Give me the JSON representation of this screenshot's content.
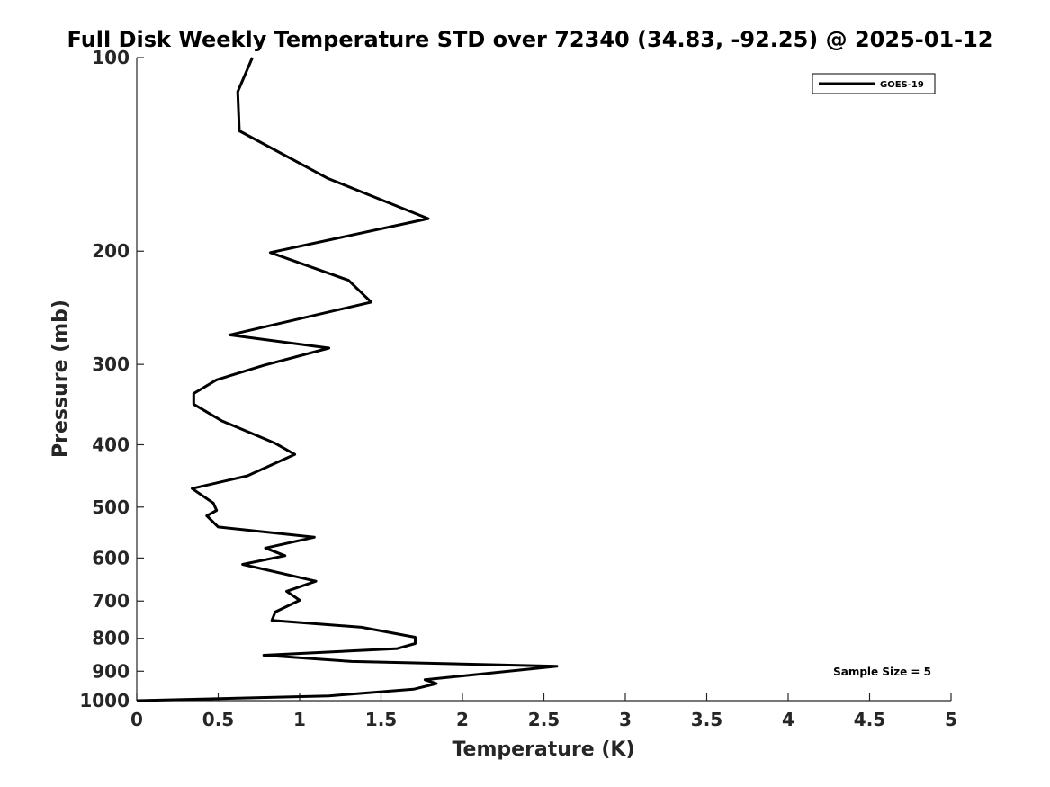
{
  "chart_data": {
    "type": "line",
    "title": "Full Disk Weekly Temperature STD over 72340 (34.83, -92.25) @ 2025-01-12",
    "xlabel": "Temperature (K)",
    "ylabel": "Pressure (mb)",
    "xlim": [
      0,
      5
    ],
    "ylim": [
      100,
      1000
    ],
    "y_scale": "log",
    "y_reversed": true,
    "grid": false,
    "legend_position": "top-right",
    "x_ticks": [
      "0",
      "0.5",
      "1",
      "1.5",
      "2",
      "2.5",
      "3",
      "3.5",
      "4",
      "4.5",
      "5"
    ],
    "y_ticks": [
      "100",
      "200",
      "300",
      "400",
      "500",
      "600",
      "700",
      "800",
      "900",
      "1000"
    ],
    "series": [
      {
        "name": "GOES-19",
        "color": "#000000",
        "points": [
          [
            0.71,
            100
          ],
          [
            0.62,
            113
          ],
          [
            0.63,
            130
          ],
          [
            1.17,
            154
          ],
          [
            1.79,
            178
          ],
          [
            0.82,
            201
          ],
          [
            1.3,
            222
          ],
          [
            1.44,
            240
          ],
          [
            0.57,
            270
          ],
          [
            1.18,
            283
          ],
          [
            0.78,
            301
          ],
          [
            0.49,
            317
          ],
          [
            0.35,
            333
          ],
          [
            0.35,
            346
          ],
          [
            0.52,
            367
          ],
          [
            0.85,
            398
          ],
          [
            0.97,
            414
          ],
          [
            0.68,
            447
          ],
          [
            0.34,
            468
          ],
          [
            0.47,
            493
          ],
          [
            0.49,
            506
          ],
          [
            0.43,
            516
          ],
          [
            0.5,
            537
          ],
          [
            1.09,
            557
          ],
          [
            0.79,
            579
          ],
          [
            0.91,
            595
          ],
          [
            0.65,
            614
          ],
          [
            1.1,
            652
          ],
          [
            0.92,
            676
          ],
          [
            1.0,
            698
          ],
          [
            0.85,
            728
          ],
          [
            0.83,
            750
          ],
          [
            1.38,
            769
          ],
          [
            1.71,
            797
          ],
          [
            1.71,
            815
          ],
          [
            1.6,
            830
          ],
          [
            0.78,
            850
          ],
          [
            1.32,
            869
          ],
          [
            2.58,
            884
          ],
          [
            1.77,
            928
          ],
          [
            1.84,
            941
          ],
          [
            1.7,
            960
          ],
          [
            1.18,
            983
          ],
          [
            0.0,
            1000
          ]
        ]
      }
    ],
    "annotations": [
      "Sample Size = 5"
    ]
  }
}
